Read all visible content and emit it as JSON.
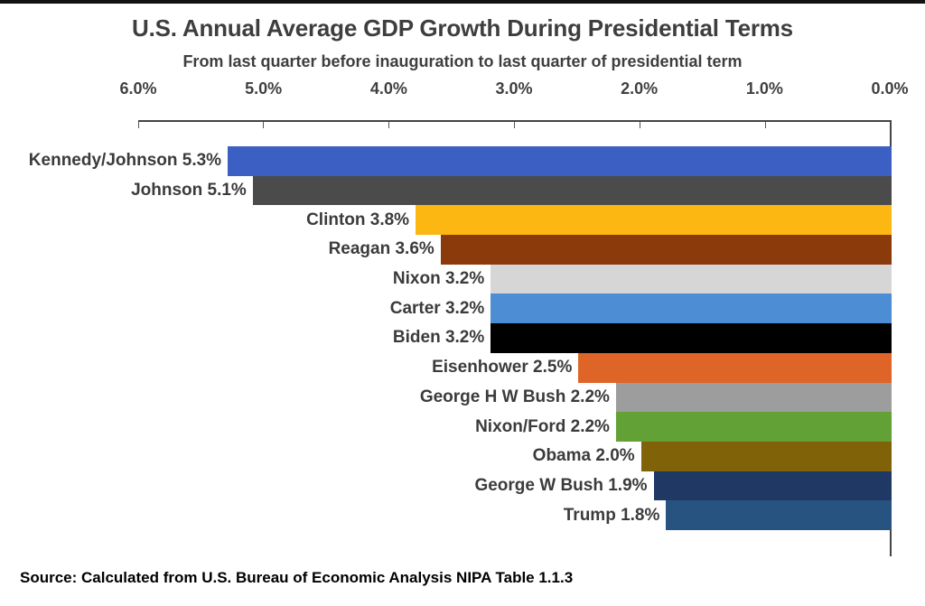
{
  "header": {
    "title": "U.S. Annual Average GDP Growth During Presidential Terms",
    "subtitle": "From last quarter before inauguration to last quarter of presidential term"
  },
  "source_note": "Source: Calculated from U.S. Bureau of Economic Analysis NIPA Table 1.1.3",
  "chart_data": {
    "type": "bar",
    "orientation": "horizontal-right-anchored",
    "title": "U.S. Annual Average GDP Growth During Presidential Terms",
    "subtitle": "From last quarter before inauguration to last quarter of presidential term",
    "x_axis": {
      "position": "top",
      "reversed": true,
      "range": [
        0,
        6
      ],
      "tick_labels": [
        "6.0%",
        "5.0%",
        "4.0%",
        "3.0%",
        "2.0%",
        "1.0%",
        "0.0%"
      ],
      "tick_values": [
        6.0,
        5.0,
        4.0,
        3.0,
        2.0,
        1.0,
        0.0
      ]
    },
    "grid": "off",
    "legend": "none",
    "categories": [
      "Kennedy/Johnson",
      "Johnson",
      "Clinton",
      "Reagan",
      "Nixon",
      "Carter",
      "Biden",
      "Eisenhower",
      "George H W Bush",
      "Nixon/Ford",
      "Obama",
      "George W Bush",
      "Trump"
    ],
    "values": [
      5.3,
      5.1,
      3.8,
      3.6,
      3.2,
      3.2,
      3.2,
      2.5,
      2.2,
      2.2,
      2.0,
      1.9,
      1.8
    ],
    "labels": [
      "Kennedy/Johnson 5.3%",
      "Johnson 5.1%",
      "Clinton 3.8%",
      "Reagan 3.6%",
      "Nixon 3.2%",
      "Carter 3.2%",
      "Biden 3.2%",
      "Eisenhower 2.5%",
      "George H W Bush 2.2%",
      "Nixon/Ford 2.2%",
      "Obama 2.0%",
      "George W Bush 1.9%",
      "Trump 1.8%"
    ],
    "colors": [
      "#3b5fc2",
      "#4b4b4b",
      "#fcb712",
      "#8b3a0c",
      "#d6d6d6",
      "#4d8dd3",
      "#000000",
      "#de6527",
      "#9d9d9d",
      "#61a135",
      "#806208",
      "#203864",
      "#26537f"
    ],
    "axis_color": "#454545",
    "label_color": "#3b3b3b",
    "title_color": "#3e3e3e"
  }
}
